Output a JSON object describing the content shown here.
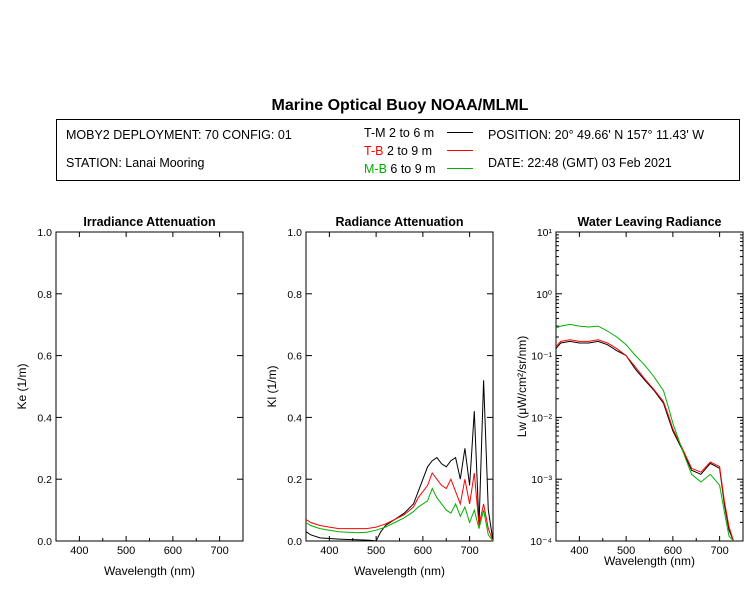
{
  "header": {
    "title": "Marine Optical Buoy NOAA/MLML",
    "deployment": "MOBY2 DEPLOYMENT: 70 CONFIG: 01",
    "station": "STATION: Lanai Mooring",
    "position": "POSITION: 20° 49.66' N   157° 11.43' W",
    "date": "DATE: 22:48 (GMT) 03 Feb 2021",
    "legend": [
      {
        "code": "T-M",
        "range": "2 to 6  m",
        "color": "#000000"
      },
      {
        "code": "T-B",
        "range": "2 to 9  m",
        "color": "#ff0000"
      },
      {
        "code": "M-B",
        "range": "6 to 9  m",
        "color": "#00b000"
      }
    ]
  },
  "chart_data": [
    {
      "type": "line",
      "title": "Irradiance Attenuation",
      "xlabel": "Wavelength (nm)",
      "ylabel": "Ke  (1/m)",
      "xlim": [
        350,
        750
      ],
      "ylim": [
        0,
        1
      ],
      "xticks": [
        "400",
        "500",
        "600",
        "700"
      ],
      "yticks": [
        "0.0",
        "0.2",
        "0.4",
        "0.6",
        "0.8",
        "1.0"
      ],
      "series": []
    },
    {
      "type": "line",
      "title": "Radiance Attenuation",
      "xlabel": "Wavelength (nm)",
      "ylabel": "Kl  (1/m)",
      "xlim": [
        350,
        750
      ],
      "ylim": [
        0,
        1
      ],
      "xticks": [
        "400",
        "500",
        "600",
        "700"
      ],
      "yticks": [
        "0.0",
        "0.2",
        "0.4",
        "0.6",
        "0.8",
        "1.0"
      ],
      "series": [
        {
          "color": "#000000",
          "x": [
            350,
            360,
            380,
            400,
            420,
            440,
            460,
            480,
            490,
            500,
            510,
            520,
            540,
            560,
            580,
            590,
            600,
            610,
            620,
            630,
            640,
            650,
            660,
            670,
            680,
            690,
            700,
            710,
            720,
            730,
            740,
            750
          ],
          "y": [
            0.03,
            0.02,
            0.01,
            0.008,
            0.006,
            0.005,
            0.004,
            0.003,
            0.002,
            0.0,
            0.03,
            0.05,
            0.07,
            0.09,
            0.12,
            0.16,
            0.2,
            0.24,
            0.26,
            0.27,
            0.25,
            0.24,
            0.26,
            0.27,
            0.2,
            0.3,
            0.18,
            0.42,
            0.05,
            0.52,
            0.1,
            0.0
          ]
        },
        {
          "color": "#ff0000",
          "x": [
            350,
            360,
            380,
            400,
            420,
            440,
            460,
            480,
            500,
            520,
            540,
            560,
            580,
            590,
            600,
            610,
            620,
            630,
            640,
            650,
            660,
            670,
            680,
            690,
            700,
            710,
            720,
            730,
            740,
            750
          ],
          "y": [
            0.07,
            0.06,
            0.05,
            0.045,
            0.04,
            0.04,
            0.04,
            0.04,
            0.045,
            0.055,
            0.07,
            0.085,
            0.11,
            0.14,
            0.16,
            0.18,
            0.22,
            0.2,
            0.18,
            0.17,
            0.2,
            0.16,
            0.12,
            0.2,
            0.12,
            0.22,
            0.05,
            0.12,
            0.04,
            0.0
          ]
        },
        {
          "color": "#00b000",
          "x": [
            350,
            360,
            380,
            400,
            420,
            440,
            460,
            480,
            500,
            520,
            540,
            560,
            580,
            590,
            600,
            610,
            620,
            630,
            640,
            650,
            660,
            670,
            680,
            690,
            700,
            710,
            720,
            730,
            740,
            750
          ],
          "y": [
            0.06,
            0.05,
            0.04,
            0.035,
            0.03,
            0.028,
            0.027,
            0.028,
            0.035,
            0.045,
            0.06,
            0.075,
            0.095,
            0.11,
            0.12,
            0.13,
            0.17,
            0.14,
            0.12,
            0.1,
            0.09,
            0.12,
            0.08,
            0.11,
            0.06,
            0.1,
            0.04,
            0.1,
            0.02,
            0.0
          ]
        }
      ]
    },
    {
      "type": "line",
      "title": "Water Leaving Radiance",
      "xlabel": "Wavelength (nm)",
      "ylabel": "Lw  (μW/cm²/sr/nm)",
      "xlim": [
        350,
        750
      ],
      "ylim": [
        0.0001,
        10
      ],
      "yscale": "log",
      "xticks": [
        "400",
        "500",
        "600",
        "700"
      ],
      "yticks": [
        "10¹",
        "10⁰",
        "10⁻¹",
        "10⁻²",
        "10⁻³",
        "10⁻⁴"
      ],
      "series": [
        {
          "color": "#000000",
          "x": [
            350,
            360,
            380,
            400,
            420,
            440,
            460,
            480,
            500,
            520,
            540,
            560,
            580,
            590,
            600,
            620,
            640,
            660,
            680,
            700,
            710,
            720,
            730
          ],
          "y": [
            0.13,
            0.16,
            0.17,
            0.16,
            0.16,
            0.17,
            0.15,
            0.12,
            0.1,
            0.06,
            0.04,
            0.027,
            0.017,
            0.01,
            0.006,
            0.003,
            0.0014,
            0.0012,
            0.0018,
            0.0015,
            0.0004,
            0.00015,
            0.0001
          ]
        },
        {
          "color": "#ff0000",
          "x": [
            350,
            360,
            380,
            400,
            420,
            440,
            460,
            480,
            500,
            520,
            540,
            560,
            580,
            590,
            600,
            620,
            640,
            660,
            680,
            700,
            710,
            720,
            730
          ],
          "y": [
            0.14,
            0.17,
            0.18,
            0.17,
            0.17,
            0.18,
            0.16,
            0.13,
            0.1,
            0.065,
            0.042,
            0.028,
            0.018,
            0.011,
            0.0065,
            0.0032,
            0.0015,
            0.0013,
            0.0019,
            0.0016,
            0.00045,
            0.00017,
            0.0001
          ]
        },
        {
          "color": "#00b000",
          "x": [
            350,
            360,
            380,
            400,
            420,
            440,
            460,
            480,
            500,
            520,
            540,
            560,
            580,
            590,
            600,
            620,
            640,
            660,
            680,
            700,
            710,
            720,
            730
          ],
          "y": [
            0.28,
            0.3,
            0.32,
            0.3,
            0.29,
            0.3,
            0.25,
            0.2,
            0.15,
            0.1,
            0.07,
            0.045,
            0.027,
            0.015,
            0.008,
            0.003,
            0.0012,
            0.0009,
            0.0012,
            0.0008,
            0.0003,
            0.00012,
            0.0001
          ]
        }
      ]
    }
  ]
}
